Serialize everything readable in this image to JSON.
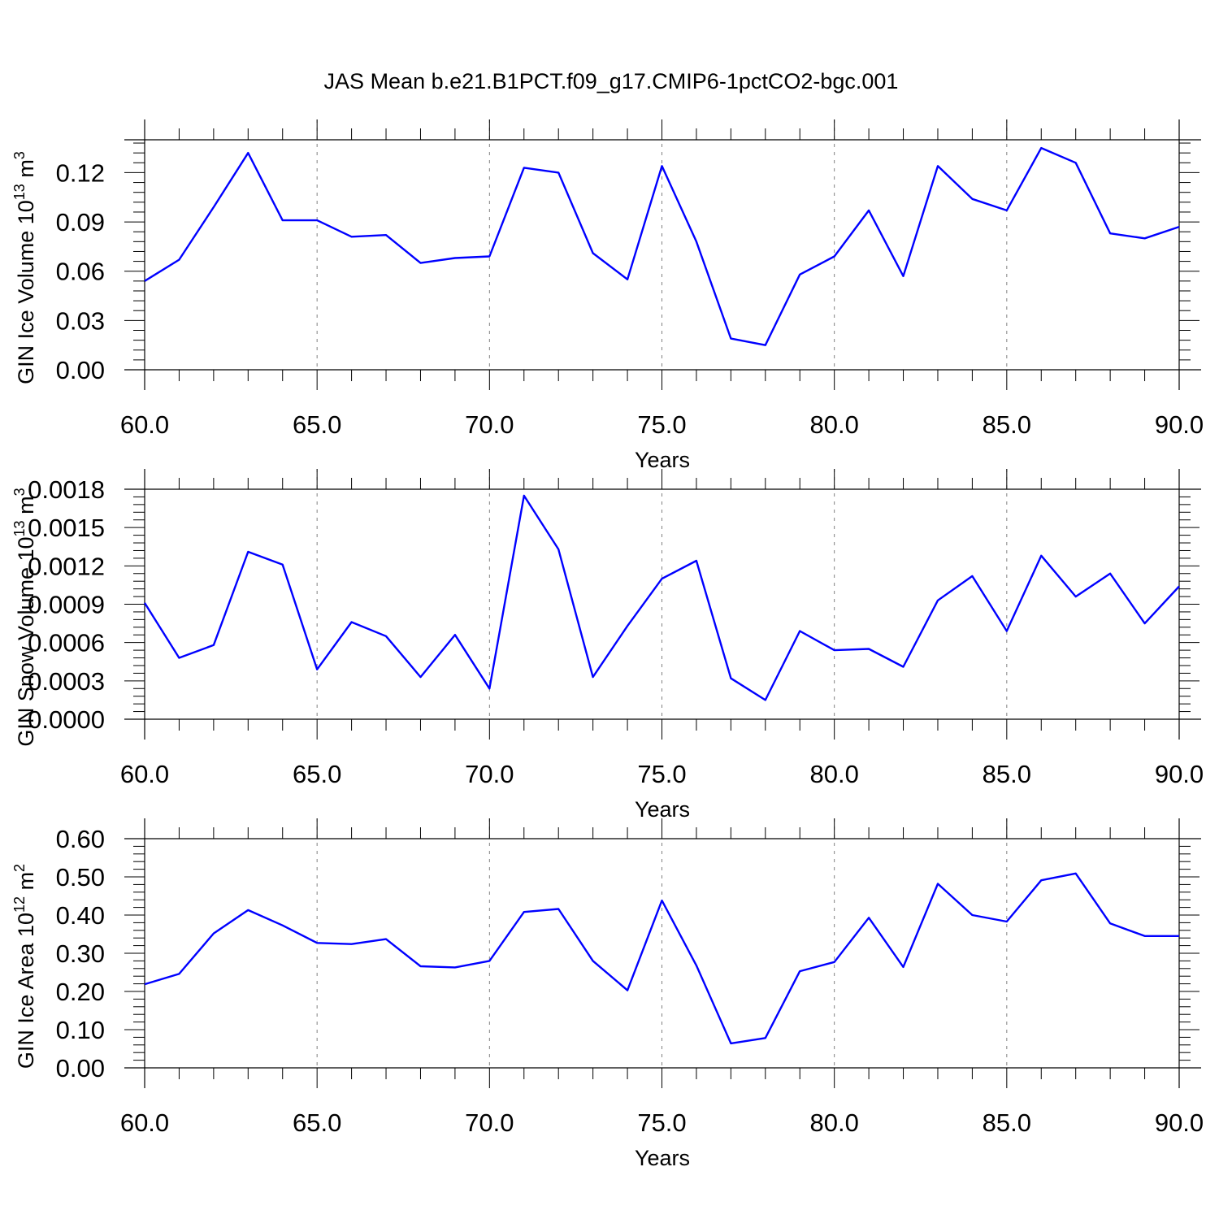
{
  "title": "JAS Mean b.e21.B1PCT.f09_g17.CMIP6-1pctCO2-bgc.001",
  "colors": {
    "line": "#0000ff",
    "axis": "#000000",
    "grid": "#808080",
    "background": "#ffffff"
  },
  "chart_data": [
    {
      "type": "line",
      "xlabel": "Years",
      "ylabel": {
        "text": "GIN Ice Volume 10",
        "sup": "13",
        "unit": " m",
        "unit_sup": "3"
      },
      "xlim": [
        60,
        90
      ],
      "ylim": [
        0,
        0.14
      ],
      "xticks": [
        "60.0",
        "65.0",
        "70.0",
        "75.0",
        "80.0",
        "85.0",
        "90.0"
      ],
      "yticks": [
        "0.00",
        "0.03",
        "0.06",
        "0.09",
        "0.12"
      ],
      "x_gridlines": [
        65,
        70,
        75,
        80,
        85
      ],
      "x": [
        60,
        61,
        62,
        63,
        64,
        65,
        66,
        67,
        68,
        69,
        70,
        71,
        72,
        73,
        74,
        75,
        76,
        77,
        78,
        79,
        80,
        81,
        82,
        83,
        84,
        85,
        86,
        87,
        88,
        89,
        90
      ],
      "values": [
        0.054,
        0.067,
        0.099,
        0.132,
        0.091,
        0.091,
        0.081,
        0.082,
        0.065,
        0.068,
        0.069,
        0.123,
        0.12,
        0.071,
        0.055,
        0.124,
        0.078,
        0.019,
        0.015,
        0.058,
        0.069,
        0.097,
        0.057,
        0.124,
        0.104,
        0.097,
        0.135,
        0.126,
        0.083,
        0.08,
        0.087
      ]
    },
    {
      "type": "line",
      "xlabel": "Years",
      "ylabel": {
        "text": "GIN Snow Volume 10",
        "sup": "13",
        "unit": " m",
        "unit_sup": "3"
      },
      "xlim": [
        60,
        90
      ],
      "ylim": [
        0,
        0.0018
      ],
      "xticks": [
        "60.0",
        "65.0",
        "70.0",
        "75.0",
        "80.0",
        "85.0",
        "90.0"
      ],
      "yticks": [
        "0.0000",
        "0.0003",
        "0.0006",
        "0.0009",
        "0.0012",
        "0.0015",
        "0.0018"
      ],
      "x_gridlines": [
        65,
        70,
        75,
        80,
        85
      ],
      "x": [
        60,
        61,
        62,
        63,
        64,
        65,
        66,
        67,
        68,
        69,
        70,
        71,
        72,
        73,
        74,
        75,
        76,
        77,
        78,
        79,
        80,
        81,
        82,
        83,
        84,
        85,
        86,
        87,
        88,
        89,
        90
      ],
      "values": [
        0.00091,
        0.00048,
        0.00058,
        0.00131,
        0.00121,
        0.00039,
        0.00076,
        0.00065,
        0.00033,
        0.00066,
        0.00024,
        0.00175,
        0.00133,
        0.00033,
        0.00073,
        0.0011,
        0.00124,
        0.00032,
        0.00015,
        0.00069,
        0.00054,
        0.00055,
        0.00041,
        0.00093,
        0.00112,
        0.00069,
        0.00128,
        0.00096,
        0.00114,
        0.00075,
        0.00104
      ]
    },
    {
      "type": "line",
      "xlabel": "Years",
      "ylabel": {
        "text": "GIN Ice Area 10",
        "sup": "12",
        "unit": " m",
        "unit_sup": "2"
      },
      "xlim": [
        60,
        90
      ],
      "ylim": [
        0,
        0.6
      ],
      "xticks": [
        "60.0",
        "65.0",
        "70.0",
        "75.0",
        "80.0",
        "85.0",
        "90.0"
      ],
      "yticks": [
        "0.00",
        "0.10",
        "0.20",
        "0.30",
        "0.40",
        "0.50",
        "0.60"
      ],
      "x_gridlines": [
        65,
        70,
        75,
        80,
        85
      ],
      "x": [
        60,
        61,
        62,
        63,
        64,
        65,
        66,
        67,
        68,
        69,
        70,
        71,
        72,
        73,
        74,
        75,
        76,
        77,
        78,
        79,
        80,
        81,
        82,
        83,
        84,
        85,
        86,
        87,
        88,
        89,
        90
      ],
      "values": [
        0.219,
        0.246,
        0.352,
        0.413,
        0.373,
        0.327,
        0.324,
        0.337,
        0.266,
        0.263,
        0.28,
        0.408,
        0.416,
        0.28,
        0.203,
        0.438,
        0.268,
        0.064,
        0.078,
        0.253,
        0.277,
        0.393,
        0.264,
        0.482,
        0.4,
        0.383,
        0.491,
        0.509,
        0.378,
        0.345,
        0.345
      ]
    }
  ]
}
